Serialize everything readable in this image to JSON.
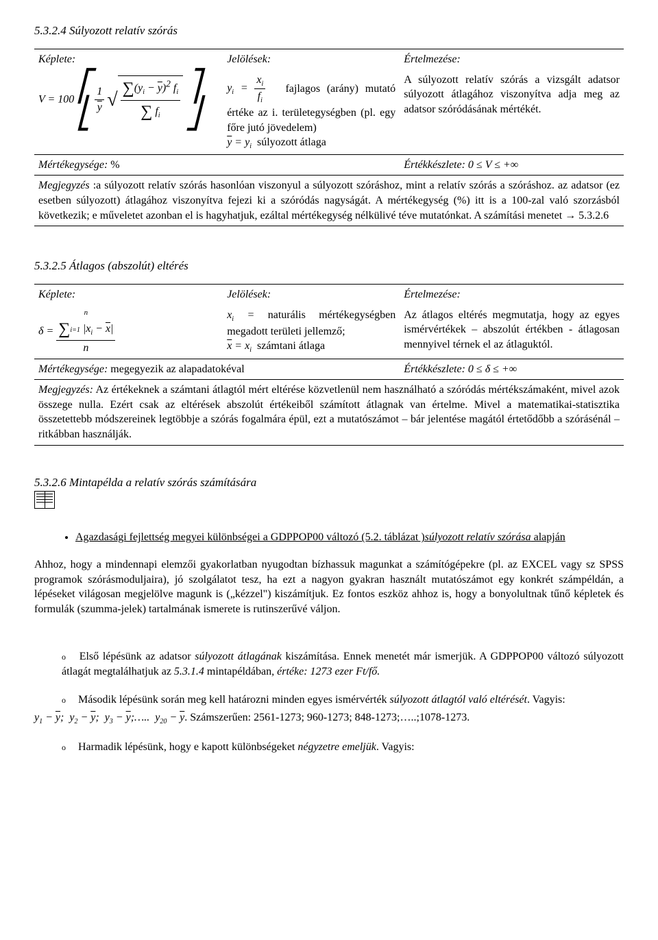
{
  "s1": {
    "title": "5.3.2.4 Súlyozott relatív szórás",
    "hdr_formula": "Képlete:",
    "hdr_notation": "Jelölések:",
    "hdr_meaning": "Értelmezése:",
    "notation1_desc": "fajlagos (arány) mutató értéke az i. területegységben (pl. egy főre jutó jövedelem)",
    "notation2_desc": "súlyozott átlaga",
    "meaning": "A súlyozott relatív szórás a vizsgált adatsor súlyozott átlagához viszonyítva adja meg az adatsor szóródásának mértékét.",
    "unit_label": "Mértékegysége:",
    "unit_value": "%",
    "range_label": "Értékkészlete:",
    "range_value": "0 ≤ V ≤ +∞",
    "note_label": "Megjegyzés",
    "note": " :a súlyozott relatív szórás hasonlóan viszonyul a súlyozott szóráshoz, mint a relatív szórás  a szóráshoz. az adatsor (ez esetben súlyozott) átlagához viszonyítva fejezi ki a szóródás nagyságát. A mértékegység (%) itt is a 100-zal való szorzásból következik; e műveletet azonban el is hagyhatjuk, ezáltal mértékegység nélkülivé téve mutatónkat. A számítási menetet → 5.3.2.6"
  },
  "s2": {
    "title": "5.3.2.5 Átlagos (abszolút) eltérés",
    "hdr_formula": "Képlete:",
    "hdr_notation": "Jelölések:",
    "hdr_meaning": "Értelmezése:",
    "notation1_desc": "naturális mértékegységben megadott területi jellemző;",
    "notation2_desc": "számtani átlaga",
    "meaning": "Az átlagos eltérés megmutatja, hogy az egyes ismérvértékek – abszolút értékben - átlagosan mennyivel térnek el az átlaguktól.",
    "unit_label": "Mértékegysége:",
    "unit_value": "megegyezik az alapadatokéval",
    "range_label": "Értékkészlete:",
    "range_value": "0 ≤ δ ≤ +∞",
    "note_label": "Megjegyzés:",
    "note": " Az értékeknek a számtani átlagtól mért eltérése közvetlenül nem használható a szóródás mértékszámaként, mivel azok összege nulla. Ezért csak az eltérések abszolút értékeiből számított átlagnak van értelme. Mivel a matematikai-statisztika összetettebb módszereinek legtöbbje a szórás fogalmára épül, ezt a mutatószámot – bár jelentése magától értetődőbb a szórásénál – ritkábban használják."
  },
  "s3": {
    "title": "5.3.2.6 Mintapélda a relatív  szórás számítására",
    "bullet1_a": "Agazdasági fejlettség megyei különbségei a GDPPOP00 változó (5.2. táblázat )",
    "bullet1_b": "súlyozott relatív szórása",
    "bullet1_c": " alapján",
    "para1": "Ahhoz, hogy a mindennapi elemzői gyakorlatban nyugodtan bízhassuk magunkat a számítógépekre (pl. az EXCEL vagy sz SPSS programok szórásmoduljaira), jó szolgálatot tesz, ha ezt a nagyon gyakran használt mutatószámot egy konkrét számpéldán, a lépéseket világosan megjelölve magunk is („kézzel\") kiszámítjuk. Ez fontos eszköz ahhoz is, hogy a bonyolultnak tűnő képletek és formulák (szumma-jelek) tartalmának ismerete is rutinszerűvé váljon.",
    "step1_a": "Első lépésünk az adatsor ",
    "step1_b": "súlyozott átlagának",
    "step1_c": " kiszámítása. Ennek menetét már ismerjük. A GDPPOP00 változó súlyozott átlagát megtalálhatjuk az ",
    "step1_d": "5.3.1.4",
    "step1_e": " mintapéldában",
    "step1_f": ", értéke: 1273 ezer Ft/fő.",
    "step2_a": "Második lépésünk során meg kell határozni minden egyes ismérvérték ",
    "step2_b": "súlyozott átlagtól való eltérését",
    "step2_c": ". Vagyis:",
    "step2_eq": ". Számszerűen: 2561-1273; 960-1273; 848-1273;…..;1078-1273.",
    "step3_a": "Harmadik lépésünk, hogy e kapott különbségeket ",
    "step3_b": "négyzetre emeljük",
    "step3_c": ". Vagyis:"
  }
}
